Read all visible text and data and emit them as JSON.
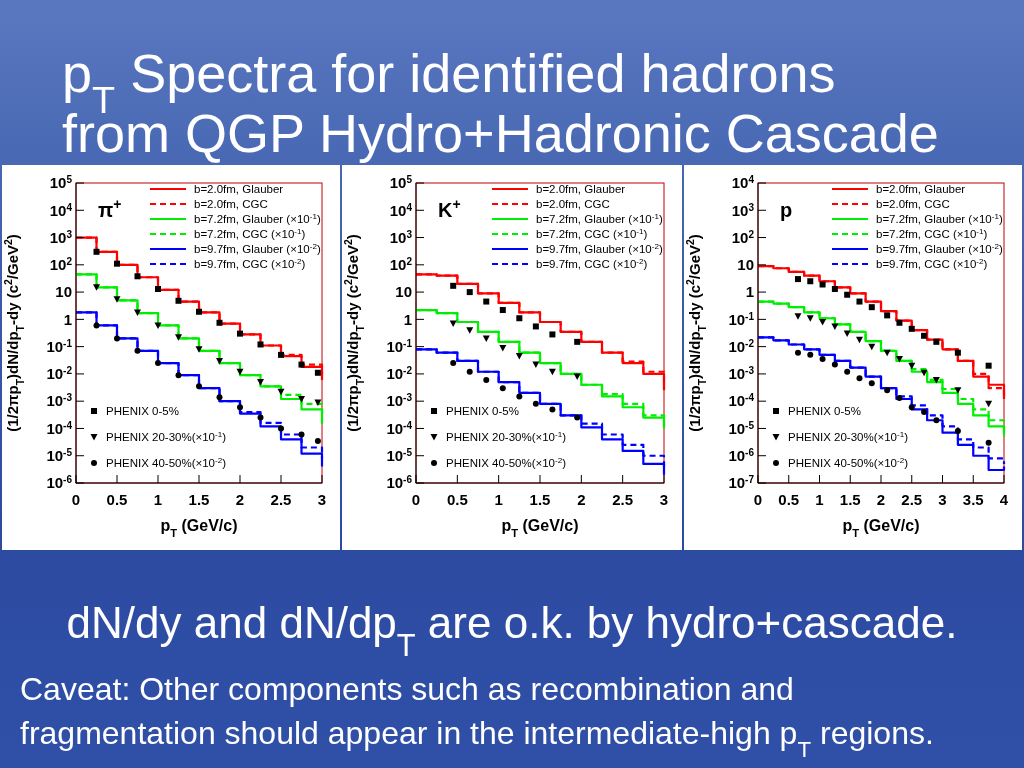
{
  "chart_data": [
    {
      "type": "step",
      "title": "p$_{T}$ Spectra for identified hadrons\nfrom QGP Hydro+Hadronic Cascade",
      "xlabel": "p$_{T}$ (GeV/c)",
      "ylabel": "(1/2πp$_{T}$)dN/dp$_{T}$-dy (c$^{2}$/GeV$^{2}$)",
      "annotations": [
        "π$^{+}$"
      ],
      "log": "y",
      "legend": "top right",
      "xlim": [
        0,
        3
      ],
      "xticks": [
        0,
        0.5,
        1,
        1.5,
        2,
        2.5,
        3
      ],
      "ylim": [
        1e-06,
        100000
      ],
      "yticks": [
        {
          "value": 1e-06,
          "label": "10$^{-6}$"
        },
        {
          "value": 1e-05,
          "label": "10$^{-5}$"
        },
        {
          "value": 0.0001,
          "label": "10$^{-4}$"
        },
        {
          "value": 0.001,
          "label": "10$^{-3}$"
        },
        {
          "value": 0.01,
          "label": "10$^{-2}$"
        },
        {
          "value": 0.1,
          "label": "10$^{-1}$"
        },
        {
          "value": 1,
          "label": "1"
        },
        {
          "value": 10,
          "label": "10"
        },
        {
          "value": 100,
          "label": "10$^{2}$"
        },
        {
          "value": 1000,
          "label": "10$^{3}$"
        },
        {
          "value": 10000,
          "label": "10$^{4}$"
        },
        {
          "value": 100000,
          "label": "10$^{5}$"
        }
      ],
      "x": [
        0,
        0.25,
        0.5,
        0.75,
        1,
        1.25,
        1.5,
        1.75,
        2,
        2.25,
        2.5,
        2.75,
        3
      ],
      "series": [
        {
          "name": "b=2.0fm, Glauber",
          "line_style": "solid",
          "color": "#ff0000",
          "values": [
            1000,
            300,
            100,
            35,
            12,
            4.5,
            1.8,
            0.7,
            0.28,
            0.11,
            0.045,
            0.018,
            0.006
          ]
        },
        {
          "name": "b=2.0fm, CGC",
          "type": "step",
          "line_style": "dashed",
          "color": "#ff0000",
          "values": [
            1000,
            300,
            100,
            35,
            12,
            4.5,
            1.8,
            0.7,
            0.28,
            0.11,
            0.05,
            0.022,
            0.009
          ]
        },
        {
          "name": "b=7.2fm, Glauber (×10$^{-1}$)",
          "type": "step",
          "line_style": "solid",
          "color": "#00ee00",
          "values": [
            45,
            15,
            5,
            1.7,
            0.6,
            0.2,
            0.07,
            0.025,
            0.009,
            0.0035,
            0.0012,
            0.0005,
            0.00015
          ]
        },
        {
          "name": "b=7.2fm, CGC (×10$^{-1}$)",
          "type": "step",
          "line_style": "dashed",
          "color": "#00ee00",
          "values": [
            45,
            15,
            5,
            1.7,
            0.6,
            0.2,
            0.07,
            0.025,
            0.009,
            0.0035,
            0.0017,
            0.0008,
            0.0003
          ]
        },
        {
          "name": "b=9.7fm, Glauber (×10$^{-2}$)",
          "type": "step",
          "line_style": "solid",
          "color": "#0000ff",
          "values": [
            1.8,
            0.6,
            0.2,
            0.07,
            0.025,
            0.009,
            0.003,
            0.001,
            0.00035,
            0.00012,
            4e-05,
            1.2e-05,
            4e-06
          ]
        },
        {
          "name": "b=9.7fm, CGC (×10$^{-2}$)",
          "type": "step",
          "line_style": "dashed",
          "color": "#0000ff",
          "values": [
            1.8,
            0.6,
            0.2,
            0.07,
            0.025,
            0.009,
            0.003,
            0.001,
            0.0004,
            0.00016,
            6e-05,
            2e-05,
            8e-06
          ]
        },
        {
          "name": "PHENIX 0-5%",
          "type": "scatter",
          "marker": "square",
          "color": "#000000",
          "x": [
            0.25,
            0.5,
            0.75,
            1,
            1.25,
            1.5,
            1.75,
            2,
            2.25,
            2.5,
            2.75,
            2.95
          ],
          "values": [
            300,
            110,
            38,
            13,
            4.8,
            1.9,
            0.75,
            0.3,
            0.12,
            0.05,
            0.022,
            0.011
          ]
        },
        {
          "name": "PHENIX 20-30%(×10$^{-1}$)",
          "type": "scatter",
          "marker": "triangle",
          "color": "#000000",
          "x": [
            0.25,
            0.5,
            0.75,
            1,
            1.25,
            1.5,
            1.75,
            2,
            2.25,
            2.5,
            2.75,
            2.95
          ],
          "values": [
            15,
            5.5,
            1.8,
            0.6,
            0.22,
            0.08,
            0.03,
            0.012,
            0.005,
            0.0022,
            0.0012,
            0.0009
          ]
        },
        {
          "name": "PHENIX 40-50%(×10$^{-2}$)",
          "type": "scatter",
          "marker": "circle",
          "color": "#000000",
          "x": [
            0.25,
            0.5,
            0.75,
            1,
            1.25,
            1.5,
            1.75,
            2,
            2.25,
            2.5,
            2.75,
            2.95
          ],
          "values": [
            0.6,
            0.2,
            0.07,
            0.025,
            0.009,
            0.0035,
            0.0014,
            0.0006,
            0.00025,
            0.0001,
            6e-05,
            3.5e-05
          ]
        }
      ]
    },
    {
      "type": "step",
      "xlabel": "p$_{T}$ (GeV/c)",
      "ylabel": "(1/2πp$_{T}$)dN/dp$_{T}$-dy (c$^{2}$/GeV$^{2}$)",
      "annotations": [
        "K$^{+}$"
      ],
      "log": "y",
      "legend": "top right",
      "xlim": [
        0,
        3
      ],
      "xticks": [
        0,
        0.5,
        1,
        1.5,
        2,
        2.5,
        3
      ],
      "ylim": [
        1e-06,
        100000
      ],
      "yticks": [
        {
          "value": 1e-06,
          "label": "10$^{-6}$"
        },
        {
          "value": 1e-05,
          "label": "10$^{-5}$"
        },
        {
          "value": 0.0001,
          "label": "10$^{-4}$"
        },
        {
          "value": 0.001,
          "label": "10$^{-3}$"
        },
        {
          "value": 0.01,
          "label": "10$^{-2}$"
        },
        {
          "value": 0.1,
          "label": "10$^{-1}$"
        },
        {
          "value": 1,
          "label": "1"
        },
        {
          "value": 10,
          "label": "10"
        },
        {
          "value": 100,
          "label": "10$^{2}$"
        },
        {
          "value": 1000,
          "label": "10$^{3}$"
        },
        {
          "value": 10000,
          "label": "10$^{4}$"
        },
        {
          "value": 100000,
          "label": "10$^{5}$"
        }
      ],
      "x": [
        0,
        0.25,
        0.5,
        0.75,
        1,
        1.25,
        1.5,
        1.75,
        2,
        2.25,
        2.5,
        2.75,
        3
      ],
      "series": [
        {
          "name": "b=2.0fm, Glauber",
          "line_style": "solid",
          "color": "#ff0000",
          "values": [
            45,
            40,
            20,
            9,
            4,
            1.8,
            0.8,
            0.35,
            0.15,
            0.06,
            0.025,
            0.01,
            0.0025
          ]
        },
        {
          "name": "b=2.0fm, CGC",
          "type": "step",
          "line_style": "dashed",
          "color": "#ff0000",
          "values": [
            45,
            40,
            20,
            9,
            4,
            1.8,
            0.8,
            0.35,
            0.15,
            0.06,
            0.028,
            0.012,
            0.004
          ]
        },
        {
          "name": "b=7.2fm, Glauber (×10$^{-1}$)",
          "type": "step",
          "line_style": "solid",
          "color": "#00ee00",
          "values": [
            2.2,
            1.7,
            0.8,
            0.35,
            0.15,
            0.06,
            0.025,
            0.01,
            0.004,
            0.0015,
            0.0006,
            0.00025,
            0.0001
          ]
        },
        {
          "name": "b=7.2fm, CGC (×10$^{-1}$)",
          "type": "step",
          "line_style": "dashed",
          "color": "#00ee00",
          "values": [
            2.2,
            1.7,
            0.8,
            0.35,
            0.15,
            0.06,
            0.025,
            0.01,
            0.004,
            0.0018,
            0.0008,
            0.0003,
            0.00012
          ]
        },
        {
          "name": "b=9.7fm, Glauber (×10$^{-2}$)",
          "type": "step",
          "line_style": "solid",
          "color": "#0000ff",
          "values": [
            0.08,
            0.06,
            0.03,
            0.012,
            0.005,
            0.002,
            0.0008,
            0.0003,
            0.00011,
            4e-05,
            1.5e-05,
            5e-06,
            2e-06
          ]
        },
        {
          "name": "b=9.7fm, CGC (×10$^{-2}$)",
          "type": "step",
          "line_style": "dashed",
          "color": "#0000ff",
          "values": [
            0.08,
            0.06,
            0.03,
            0.012,
            0.005,
            0.002,
            0.0008,
            0.0003,
            0.00015,
            6e-05,
            2.5e-05,
            1e-05,
            4e-06
          ]
        },
        {
          "name": "PHENIX 0-5%",
          "type": "scatter",
          "marker": "square",
          "color": "#000000",
          "x": [
            0.45,
            0.65,
            0.85,
            1.05,
            1.25,
            1.45,
            1.65,
            1.95
          ],
          "values": [
            17,
            10,
            4.5,
            2.2,
            1.1,
            0.55,
            0.28,
            0.15
          ]
        },
        {
          "name": "PHENIX 20-30%(×10$^{-1}$)",
          "type": "scatter",
          "marker": "triangle",
          "color": "#000000",
          "x": [
            0.45,
            0.65,
            0.85,
            1.05,
            1.25,
            1.45,
            1.65,
            1.95
          ],
          "values": [
            0.7,
            0.4,
            0.2,
            0.09,
            0.045,
            0.022,
            0.012,
            0.008
          ]
        },
        {
          "name": "PHENIX 40-50%(×10$^{-2}$)",
          "type": "scatter",
          "marker": "circle",
          "color": "#000000",
          "x": [
            0.45,
            0.65,
            0.85,
            1.05,
            1.25,
            1.45,
            1.65,
            1.95
          ],
          "values": [
            0.025,
            0.012,
            0.006,
            0.003,
            0.0015,
            0.0008,
            0.0005,
            0.00025
          ]
        }
      ]
    },
    {
      "type": "step",
      "xlabel": "p$_{T}$ (GeV/c)",
      "ylabel": "(1/2πp$_{T}$)dN/dp$_{T}$-dy (c$^{2}$/GeV$^{2}$)",
      "annotations": [
        "p",
        "dN/dy and dN/dp$_{T}$ are o.k. by hydro+cascade.",
        "Caveat: Other components such as recombination and\nfragmentation should appear in the intermediate-high p$_{T}$ regions."
      ],
      "log": "y",
      "legend": "top right",
      "xlim": [
        0,
        4
      ],
      "xticks": [
        0,
        0.5,
        1,
        1.5,
        2,
        2.5,
        3,
        3.5,
        4
      ],
      "ylim": [
        1e-07,
        10000
      ],
      "yticks": [
        {
          "value": 1e-07,
          "label": "10$^{-7}$"
        },
        {
          "value": 1e-06,
          "label": "10$^{-6}$"
        },
        {
          "value": 1e-05,
          "label": "10$^{-5}$"
        },
        {
          "value": 0.0001,
          "label": "10$^{-4}$"
        },
        {
          "value": 0.001,
          "label": "10$^{-3}$"
        },
        {
          "value": 0.01,
          "label": "10$^{-2}$"
        },
        {
          "value": 0.1,
          "label": "10$^{-1}$"
        },
        {
          "value": 1,
          "label": "1"
        },
        {
          "value": 10,
          "label": "10"
        },
        {
          "value": 100,
          "label": "10$^{2}$"
        },
        {
          "value": 1000,
          "label": "10$^{3}$"
        },
        {
          "value": 10000,
          "label": "10$^{4}$"
        }
      ],
      "x": [
        0,
        0.25,
        0.5,
        0.75,
        1,
        1.25,
        1.5,
        1.75,
        2,
        2.25,
        2.5,
        2.75,
        3,
        3.25,
        3.5,
        3.75,
        4
      ],
      "series": [
        {
          "name": "b=2.0fm, Glauber",
          "line_style": "solid",
          "color": "#ff0000",
          "values": [
            9,
            7.5,
            5.5,
            4,
            2.5,
            1.5,
            0.9,
            0.45,
            0.2,
            0.09,
            0.04,
            0.018,
            0.008,
            0.003,
            0.0008,
            0.0004,
            0.00012
          ]
        },
        {
          "name": "b=2.0fm, CGC",
          "type": "step",
          "line_style": "dashed",
          "color": "#ff0000",
          "values": [
            9,
            7.5,
            5.5,
            4,
            2.5,
            1.5,
            0.9,
            0.45,
            0.2,
            0.09,
            0.04,
            0.018,
            0.008,
            0.003,
            0.001,
            0.0003,
            0.00015
          ]
        },
        {
          "name": "b=7.2fm, Glauber (×10$^{-1}$)",
          "type": "step",
          "line_style": "solid",
          "color": "#00ee00",
          "values": [
            0.45,
            0.38,
            0.28,
            0.18,
            0.11,
            0.065,
            0.035,
            0.016,
            0.007,
            0.003,
            0.0012,
            0.0005,
            0.0002,
            8e-05,
            3e-05,
            1.2e-05,
            6e-06
          ]
        },
        {
          "name": "b=7.2fm, CGC (×10$^{-1}$)",
          "type": "step",
          "line_style": "dashed",
          "color": "#00ee00",
          "values": [
            0.45,
            0.38,
            0.28,
            0.18,
            0.11,
            0.065,
            0.035,
            0.016,
            0.007,
            0.003,
            0.0015,
            0.0006,
            0.00028,
            0.00012,
            5e-05,
            2e-05,
            5e-06
          ]
        },
        {
          "name": "b=9.7fm, Glauber (×10$^{-2}$)",
          "type": "step",
          "line_style": "solid",
          "color": "#0000ff",
          "values": [
            0.022,
            0.017,
            0.012,
            0.008,
            0.005,
            0.003,
            0.0017,
            0.0008,
            0.0003,
            0.00012,
            5e-05,
            2e-05,
            7e-06,
            2.5e-06,
            1e-06,
            3e-07,
            4e-07
          ]
        },
        {
          "name": "b=9.7fm, CGC (×10$^{-2}$)",
          "type": "step",
          "line_style": "dashed",
          "color": "#0000ff",
          "values": [
            0.022,
            0.017,
            0.012,
            0.008,
            0.005,
            0.003,
            0.0017,
            0.0008,
            0.0003,
            0.00015,
            7e-05,
            3e-05,
            1.2e-05,
            4e-06,
            2e-06,
            8e-07,
            5e-07
          ]
        },
        {
          "name": "PHENIX 0-5%",
          "type": "scatter",
          "marker": "square",
          "color": "#000000",
          "x": [
            0.65,
            0.85,
            1.05,
            1.25,
            1.45,
            1.65,
            1.85,
            2.1,
            2.3,
            2.5,
            2.7,
            2.9,
            3.25,
            3.75
          ],
          "values": [
            3,
            2.5,
            1.9,
            1.3,
            0.8,
            0.45,
            0.28,
            0.14,
            0.075,
            0.045,
            0.025,
            0.015,
            0.006,
            0.002
          ]
        },
        {
          "name": "PHENIX 20-30%(×10$^{-1}$)",
          "type": "scatter",
          "marker": "triangle",
          "color": "#000000",
          "x": [
            0.65,
            0.85,
            1.05,
            1.25,
            1.45,
            1.65,
            1.85,
            2.1,
            2.3,
            2.5,
            2.7,
            2.9,
            3.25,
            3.75
          ],
          "values": [
            0.13,
            0.11,
            0.08,
            0.055,
            0.03,
            0.018,
            0.01,
            0.006,
            0.0035,
            0.002,
            0.0011,
            0.0006,
            0.00025,
            8e-05
          ]
        },
        {
          "name": "PHENIX 40-50%(×10$^{-2}$)",
          "type": "scatter",
          "marker": "circle",
          "color": "#000000",
          "x": [
            0.65,
            0.85,
            1.05,
            1.25,
            1.45,
            1.65,
            1.85,
            2.1,
            2.3,
            2.5,
            2.7,
            2.9,
            3.25,
            3.75
          ],
          "values": [
            0.006,
            0.005,
            0.0035,
            0.0022,
            0.0012,
            0.0007,
            0.00045,
            0.00025,
            0.00013,
            6e-05,
            4e-05,
            2e-05,
            8e-06,
            3e-06
          ]
        }
      ]
    }
  ]
}
